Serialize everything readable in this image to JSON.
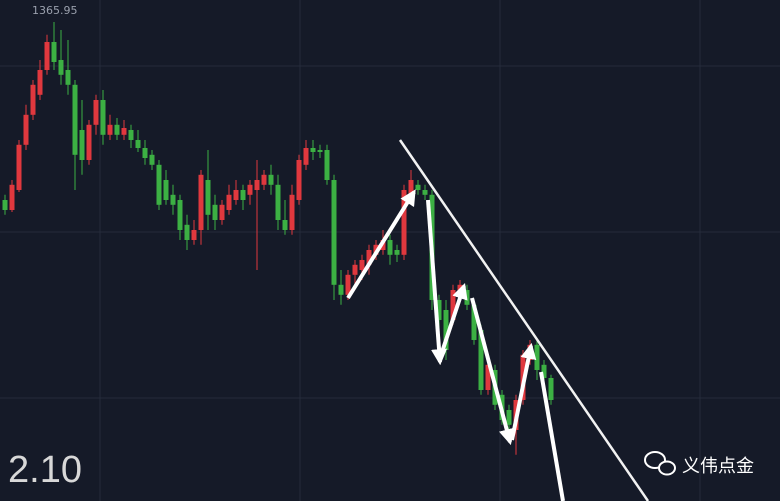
{
  "chart_data": {
    "type": "candlestick",
    "max_label": 1365.95,
    "date_label": "2.10",
    "watermark": "义伟点金",
    "up_color": "#e0383e",
    "down_color": "#3cb043",
    "ylim": [
      1353.975,
      1366.5
    ],
    "series": [
      {
        "open": [
          1361.5,
          1361.25,
          1361.75,
          1362.88,
          1363.63,
          1364.13,
          1364.75,
          1365.45,
          1365.0,
          1364.75,
          1364.38,
          1363.25,
          1362.5,
          1363.38,
          1364.0,
          1363.13,
          1363.38,
          1363.13,
          1363.25,
          1363.0,
          1362.8,
          1362.63,
          1362.38,
          1362.0,
          1361.63,
          1361.5,
          1360.88,
          1360.5,
          1360.75,
          1362.0,
          1361.38,
          1361.0,
          1361.25,
          1361.5,
          1361.75,
          1361.63,
          1361.75,
          1361.88,
          1362.13,
          1361.88,
          1361.0,
          1360.75,
          1361.5,
          1362.38,
          1362.8,
          1362.75,
          1362.75,
          1362.0,
          1359.38,
          1359.13,
          1359.63,
          1359.75,
          1359.88,
          1360.13,
          1360.25,
          1360.5,
          1360.25,
          1360.13,
          1361.63,
          1361.88,
          1361.75,
          1361.63,
          1359.0,
          1358.75,
          1358.5,
          1359.13,
          1359.25,
          1358.88,
          1358.25,
          1356.75,
          1357.25,
          1356.63,
          1356.25,
          1355.75,
          1356.5,
          1357.5,
          1357.88,
          1357.38,
          1357.05
        ],
        "high": [
          1361.63,
          1362.0,
          1363.0,
          1363.88,
          1364.5,
          1365.0,
          1365.63,
          1365.95,
          1365.75,
          1365.5,
          1364.5,
          1364.0,
          1363.5,
          1364.13,
          1364.25,
          1363.63,
          1363.55,
          1363.5,
          1363.38,
          1363.25,
          1363.0,
          1362.75,
          1362.5,
          1362.25,
          1361.88,
          1361.63,
          1361.13,
          1361.0,
          1362.25,
          1362.75,
          1361.63,
          1361.5,
          1361.88,
          1362.0,
          1361.88,
          1362.0,
          1362.5,
          1362.25,
          1362.38,
          1362.13,
          1361.5,
          1361.88,
          1362.63,
          1363.0,
          1363.0,
          1362.88,
          1362.88,
          1362.13,
          1359.75,
          1359.75,
          1360.0,
          1360.13,
          1360.38,
          1360.5,
          1360.75,
          1360.63,
          1360.38,
          1361.88,
          1362.25,
          1362.0,
          1361.88,
          1361.75,
          1359.13,
          1359.0,
          1359.38,
          1359.5,
          1359.38,
          1359.0,
          1358.38,
          1357.5,
          1357.38,
          1356.75,
          1356.38,
          1356.63,
          1357.75,
          1358.0,
          1358.0,
          1357.5,
          1357.13
        ],
        "low": [
          1361.13,
          1361.2,
          1361.7,
          1362.75,
          1363.5,
          1364.0,
          1364.63,
          1364.75,
          1364.38,
          1364.13,
          1361.75,
          1362.13,
          1362.38,
          1363.13,
          1362.88,
          1363.0,
          1363.0,
          1363.0,
          1362.8,
          1362.7,
          1362.38,
          1362.25,
          1361.25,
          1361.38,
          1361.13,
          1360.5,
          1360.25,
          1360.38,
          1360.38,
          1360.75,
          1360.75,
          1360.88,
          1361.13,
          1361.38,
          1361.25,
          1361.38,
          1359.75,
          1361.75,
          1361.63,
          1360.75,
          1360.63,
          1360.63,
          1361.38,
          1362.25,
          1362.5,
          1362.55,
          1361.88,
          1359.0,
          1358.88,
          1359.0,
          1359.38,
          1359.5,
          1359.63,
          1360.0,
          1360.13,
          1359.88,
          1359.95,
          1360.0,
          1361.5,
          1361.63,
          1361.5,
          1358.75,
          1357.75,
          1357.5,
          1358.38,
          1359.0,
          1358.75,
          1357.88,
          1356.63,
          1356.63,
          1356.25,
          1355.88,
          1355.75,
          1355.13,
          1356.38,
          1357.38,
          1357.0,
          1356.88,
          1356.38
        ],
        "close": [
          1361.25,
          1361.88,
          1362.88,
          1363.63,
          1364.38,
          1364.75,
          1365.45,
          1364.95,
          1364.63,
          1364.38,
          1362.63,
          1362.5,
          1363.38,
          1364.0,
          1363.13,
          1363.38,
          1363.13,
          1363.3,
          1363.0,
          1362.8,
          1362.55,
          1362.38,
          1361.38,
          1361.5,
          1361.38,
          1360.75,
          1360.5,
          1360.75,
          1362.13,
          1361.13,
          1361.0,
          1361.38,
          1361.63,
          1361.75,
          1361.5,
          1361.88,
          1362.0,
          1362.13,
          1361.88,
          1361.0,
          1360.75,
          1361.63,
          1362.5,
          1362.8,
          1362.7,
          1362.7,
          1362.0,
          1359.38,
          1359.13,
          1359.63,
          1359.88,
          1360.0,
          1360.25,
          1360.38,
          1360.5,
          1360.13,
          1360.13,
          1361.75,
          1362.0,
          1361.75,
          1361.63,
          1359.0,
          1358.5,
          1357.75,
          1359.25,
          1359.38,
          1358.88,
          1358.0,
          1356.75,
          1357.38,
          1356.38,
          1356.0,
          1355.88,
          1356.5,
          1357.63,
          1357.88,
          1357.25,
          1357.05,
          1356.5
        ]
      }
    ]
  }
}
